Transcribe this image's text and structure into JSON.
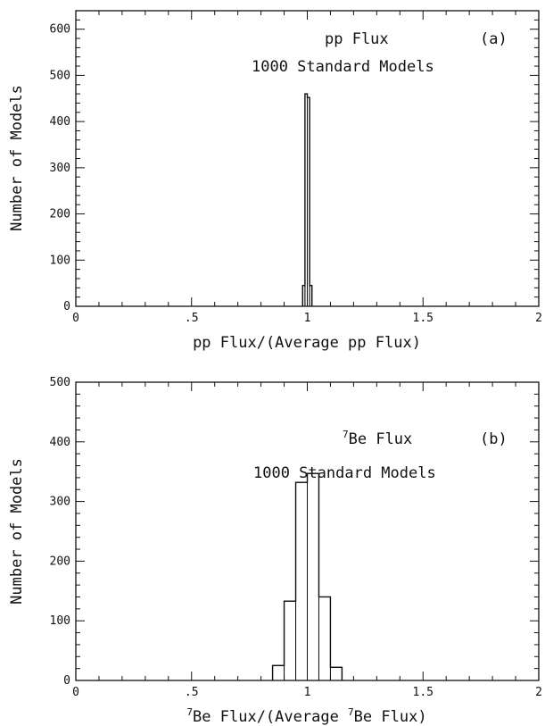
{
  "chart_data": [
    {
      "type": "bar",
      "histogram": true,
      "panel_label": "(a)",
      "annotation_title": "pp Flux",
      "annotation_subtitle": "1000 Standard Models",
      "xlabel": "pp Flux/(Average pp Flux)",
      "ylabel": "Number of Models",
      "xlim": [
        0,
        2
      ],
      "ylim": [
        0,
        640
      ],
      "x_ticks": [
        0,
        0.5,
        1,
        1.5,
        2
      ],
      "x_tick_labels": [
        "0",
        ".5",
        "1",
        "1.5",
        "2"
      ],
      "y_ticks": [
        0,
        100,
        200,
        300,
        400,
        500,
        600
      ],
      "y_tick_labels": [
        "0",
        "100",
        "200",
        "300",
        "400",
        "500",
        "600"
      ],
      "grid": false,
      "bin_edges": [
        0.98,
        0.99,
        1.0,
        1.01,
        1.02
      ],
      "values": [
        45,
        460,
        452,
        45
      ]
    },
    {
      "type": "bar",
      "histogram": true,
      "panel_label": "(b)",
      "annotation_title": "Be Flux",
      "annotation_title_superscript": "7",
      "annotation_subtitle": "1000 Standard Models",
      "xlabel_parts": [
        "",
        "7",
        "Be Flux/(Average ",
        "7",
        "Be Flux)"
      ],
      "ylabel": "Number of Models",
      "xlim": [
        0,
        2
      ],
      "ylim": [
        0,
        500
      ],
      "x_ticks": [
        0,
        0.5,
        1,
        1.5,
        2
      ],
      "x_tick_labels": [
        "0",
        ".5",
        "1",
        "1.5",
        "2"
      ],
      "y_ticks": [
        0,
        100,
        200,
        300,
        400,
        500
      ],
      "y_tick_labels": [
        "0",
        "100",
        "200",
        "300",
        "400",
        "500"
      ],
      "grid": false,
      "bin_edges": [
        0.85,
        0.9,
        0.95,
        1.0,
        1.05,
        1.1,
        1.15
      ],
      "values": [
        25,
        133,
        332,
        347,
        140,
        22
      ]
    }
  ]
}
